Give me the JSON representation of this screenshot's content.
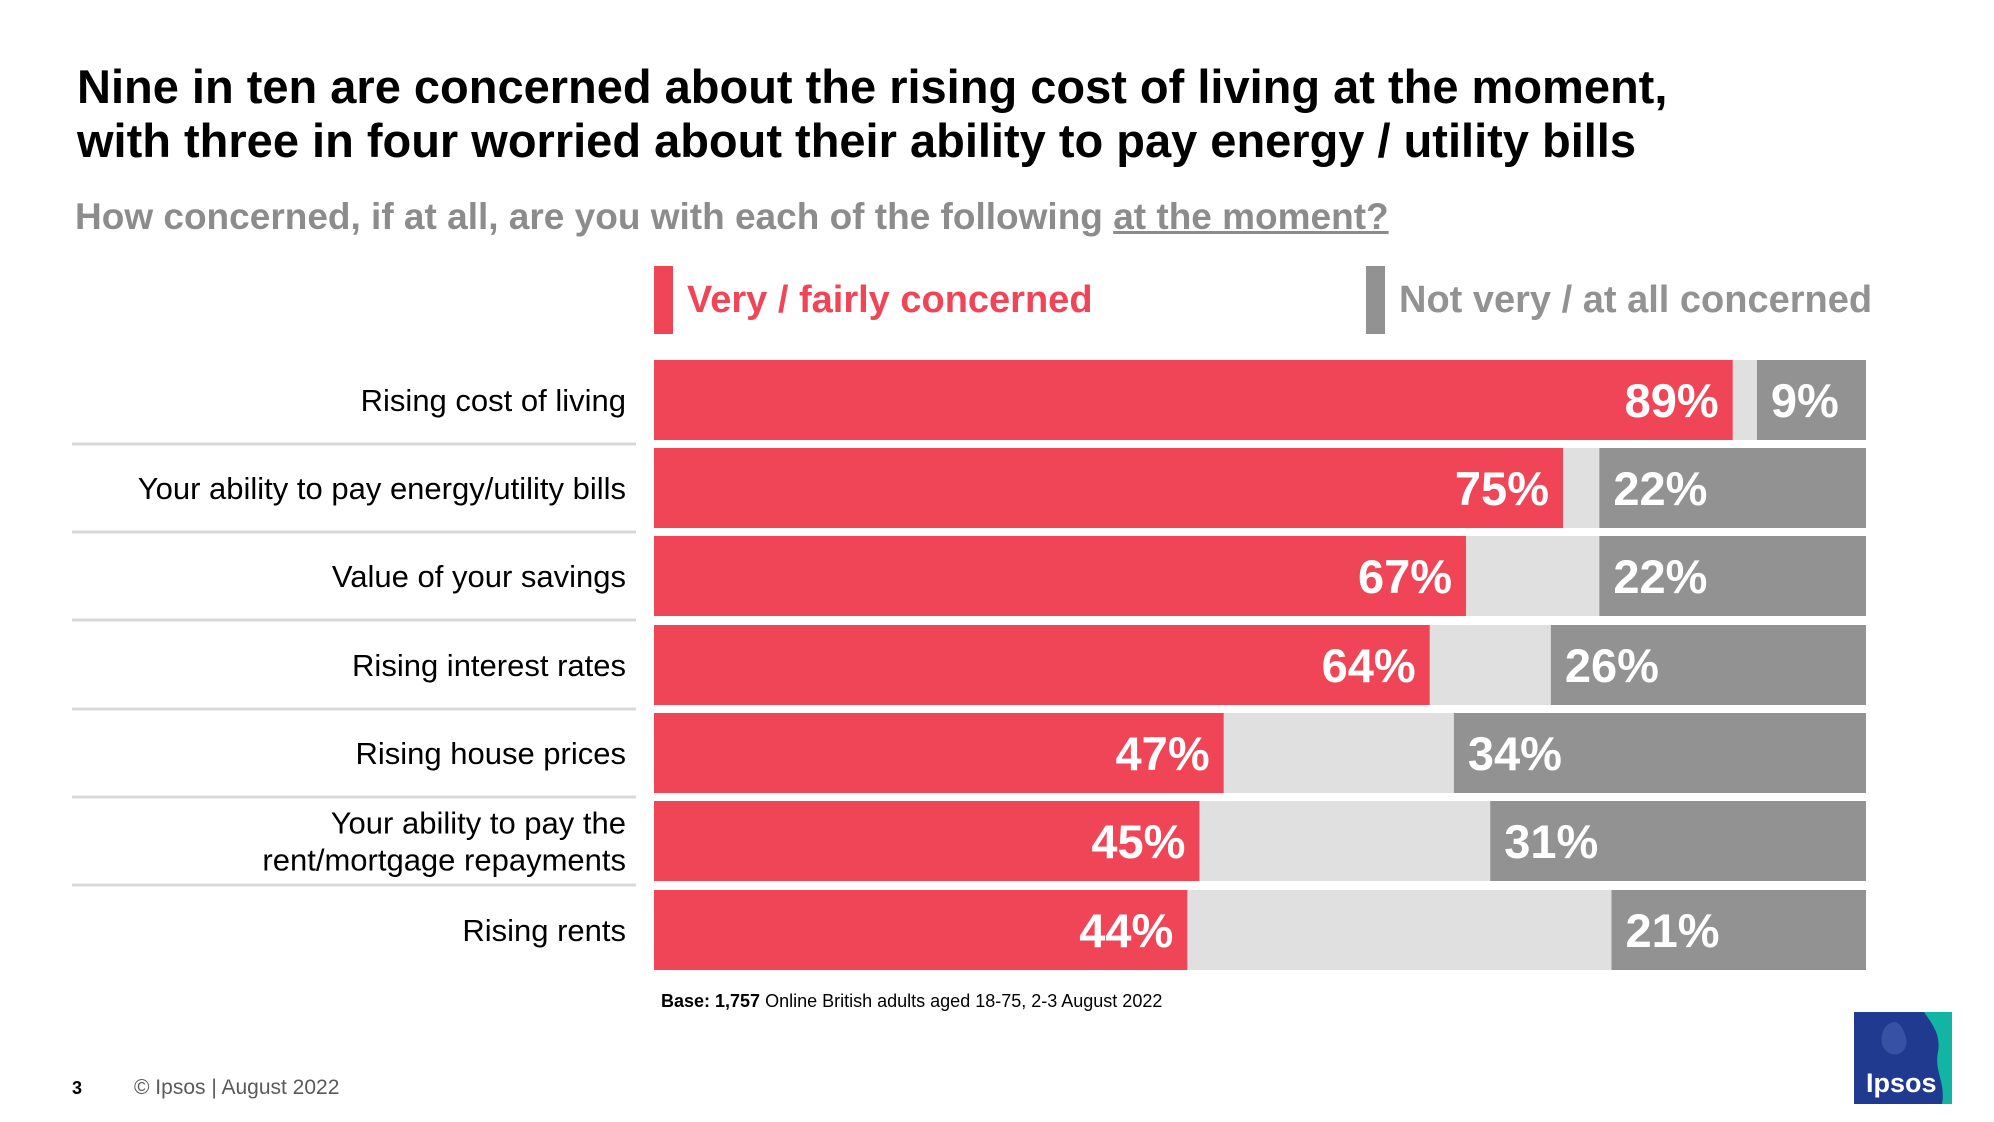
{
  "title": {
    "line1": "Nine in ten are concerned about the rising cost of living at the moment,",
    "line2": "with three in four worried about their ability to pay energy / utility bills"
  },
  "subtitle": {
    "text": "How concerned, if at all, are you with each of the following ",
    "underlined": "at the moment?"
  },
  "legend": {
    "concerned": "Very / fairly concerned",
    "not_concerned": "Not very / at all concerned"
  },
  "colors": {
    "concerned": "#f04556",
    "neutral": "#e0e0e0",
    "not_concerned": "#929292",
    "separator": "#d9d9d9",
    "logo": "#1f3a8f",
    "logo_accent": "#12b4a3"
  },
  "chart_data": {
    "type": "bar",
    "orientation": "horizontal",
    "stacked": true,
    "categories": [
      "Rising cost of living",
      "Your ability to pay energy/utility bills",
      "Value of your savings",
      "Rising interest rates",
      "Rising house prices",
      "Your ability to pay the rent/mortgage repayments",
      "Rising rents"
    ],
    "category_lines": [
      [
        "Rising cost of living"
      ],
      [
        "Your ability to pay energy/utility bills"
      ],
      [
        "Value of your savings"
      ],
      [
        "Rising interest rates"
      ],
      [
        "Rising house prices"
      ],
      [
        "Your ability to pay the",
        "rent/mortgage repayments"
      ],
      [
        "Rising rents"
      ]
    ],
    "series": [
      {
        "name": "Very / fairly concerned",
        "values": [
          89,
          75,
          67,
          64,
          47,
          45,
          44
        ]
      },
      {
        "name": "Not very / at all concerned",
        "values": [
          9,
          22,
          22,
          26,
          34,
          31,
          21
        ]
      }
    ],
    "xlim": [
      0,
      100
    ],
    "title": "Nine in ten are concerned about the rising cost of living at the moment, with three in four worried about their ability to pay energy / utility bills"
  },
  "footnote": {
    "bold": "Base: 1,757",
    "text": " Online British adults aged 18-75, 2-3 August 2022"
  },
  "page_number": "3",
  "copyright": "© Ipsos | August 2022",
  "logo_text": "Ipsos"
}
